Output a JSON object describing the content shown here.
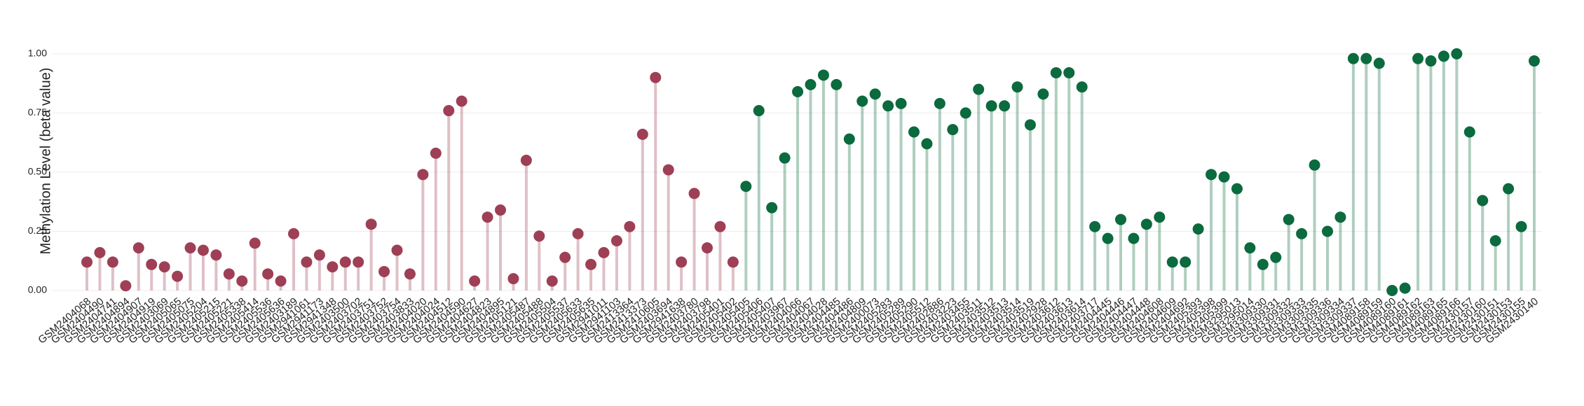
{
  "chart_data": {
    "type": "lollipop",
    "y_label": "Methylation Level (beta value)",
    "categories": [
      "GSM2404068",
      "GSM2404490",
      "GSM2404741",
      "GSM2404894",
      "GSM2404907",
      "GSM2404919",
      "GSM2403069",
      "GSM2405065",
      "GSM2405075",
      "GSM2405204",
      "GSM2405215",
      "GSM2405221",
      "GSM2405338",
      "GSM2405414",
      "GSM2405536",
      "GSM2405636",
      "GSM2403189",
      "GSM2941061",
      "GSM2941173",
      "GSM2941348",
      "GSM2403500",
      "GSM2403702",
      "GSM2403751",
      "GSM2403752",
      "GSM2403754",
      "GSM2403833",
      "GSM2404020",
      "GSM2404024",
      "GSM2404512",
      "GSM2404590",
      "GSM2404627",
      "GSM2404823",
      "GSM2404895",
      "GSM2405121",
      "GSM2405487",
      "GSM2405488",
      "GSM2405504",
      "GSM2405537",
      "GSM2405633",
      "GSM2405635",
      "GSM2941011",
      "GSM2941103",
      "GSM2413364",
      "GSM2413373",
      "GSM2410605",
      "GSM2403694",
      "GSM2941638",
      "GSM2403780",
      "GSM2403798",
      "GSM2405401",
      "GSM2405402",
      "GSM2405405",
      "GSM2405406",
      "GSM2405407",
      "GSM2403967",
      "GSM2404066",
      "GSM2404067",
      "GSM2404028",
      "GSM2404485",
      "GSM2404486",
      "GSM2404809",
      "GSM2400073",
      "GSM2405283",
      "GSM2405289",
      "GSM2405290",
      "GSM2405512",
      "GSM2402886",
      "GSM2403223",
      "GSM2403455",
      "GSM2403511",
      "GSM2403512",
      "GSM2403513",
      "GSM2403514",
      "GSM2403519",
      "GSM2402928",
      "GSM2403612",
      "GSM2403613",
      "GSM2403614",
      "GSM2403717",
      "GSM2404445",
      "GSM2404446",
      "GSM2404447",
      "GSM2404448",
      "GSM2404608",
      "GSM2404609",
      "GSM2404692",
      "GSM2405393",
      "GSM2405398",
      "GSM2405399",
      "GSM3295013",
      "GSM3295014",
      "GSM3309330",
      "GSM3309331",
      "GSM3309332",
      "GSM3309333",
      "GSM3309335",
      "GSM3309336",
      "GSM3309334",
      "GSM3309337",
      "GSM4089158",
      "GSM4089159",
      "GSM4089160",
      "GSM4089161",
      "GSM4089162",
      "GSM4089163",
      "GSM4089165",
      "GSM4089166",
      "GSM2430157",
      "GSM2430160",
      "GSM2430151",
      "GSM2430153",
      "GSM2430155",
      "GSM2430140"
    ],
    "series": [
      {
        "color": "#9e3f55",
        "values": [
          0.12,
          0.16,
          0.12,
          0.02,
          0.18,
          0.11,
          0.1,
          0.06,
          0.18,
          0.17,
          0.15,
          0.07,
          0.04,
          0.2,
          0.07,
          0.04,
          0.24,
          0.12,
          0.15,
          0.1,
          0.12,
          0.12,
          0.28,
          0.08,
          0.17,
          0.07,
          0.49,
          0.58,
          0.76,
          0.8,
          0.04,
          0.31,
          0.34,
          0.05,
          0.55,
          0.23,
          0.04,
          0.14,
          0.24,
          0.11,
          0.16,
          0.21,
          0.27,
          0.66,
          0.9,
          0.51,
          0.12,
          0.41,
          0.18,
          0.27,
          0.12,
          null,
          null,
          null,
          null,
          null,
          null,
          null,
          null,
          null,
          null,
          null,
          null,
          null,
          null,
          null,
          null,
          null,
          null,
          null,
          null,
          null,
          null,
          null,
          null,
          null,
          null,
          null,
          null,
          null,
          null,
          null,
          null,
          null,
          null,
          null,
          null,
          null,
          null,
          null,
          null,
          null,
          null,
          null,
          null,
          null,
          null,
          null,
          null,
          null,
          null,
          null,
          null,
          null,
          null,
          null,
          null,
          null,
          null,
          null,
          null,
          null,
          null
        ]
      },
      {
        "color": "#0b6a3e",
        "values": [
          null,
          null,
          null,
          null,
          null,
          null,
          null,
          null,
          null,
          null,
          null,
          null,
          null,
          null,
          null,
          null,
          null,
          null,
          null,
          null,
          null,
          null,
          null,
          null,
          null,
          null,
          null,
          null,
          null,
          null,
          null,
          null,
          null,
          null,
          null,
          null,
          null,
          null,
          null,
          null,
          null,
          null,
          null,
          null,
          null,
          null,
          null,
          null,
          null,
          null,
          null,
          0.44,
          0.76,
          0.35,
          0.56,
          0.84,
          0.87,
          0.91,
          0.87,
          0.64,
          0.8,
          0.83,
          0.78,
          0.79,
          0.67,
          0.62,
          0.79,
          0.68,
          0.75,
          0.85,
          0.78,
          0.78,
          0.86,
          0.7,
          0.83,
          0.92,
          0.92,
          0.86,
          0.27,
          0.22,
          0.3,
          0.22,
          0.28,
          0.31,
          0.12,
          0.12,
          0.26,
          0.49,
          0.48,
          0.43,
          0.18,
          0.11,
          0.14,
          0.3,
          0.24,
          0.53,
          0.25,
          0.31,
          0.98,
          0.98,
          0.96,
          0.0,
          0.01,
          0.98,
          0.97,
          0.99,
          1.0,
          0.67,
          0.38,
          0.21,
          0.43,
          0.27,
          0.97
        ]
      }
    ],
    "ylim": [
      0,
      1.05
    ],
    "yticks": [
      {
        "value": 0,
        "label": "0.00"
      },
      {
        "value": 0.25,
        "label": "0.25"
      },
      {
        "value": 0.5,
        "label": "0.50"
      },
      {
        "value": 0.75,
        "label": "0.75"
      },
      {
        "value": 1,
        "label": "1.00"
      }
    ],
    "grid": true
  }
}
